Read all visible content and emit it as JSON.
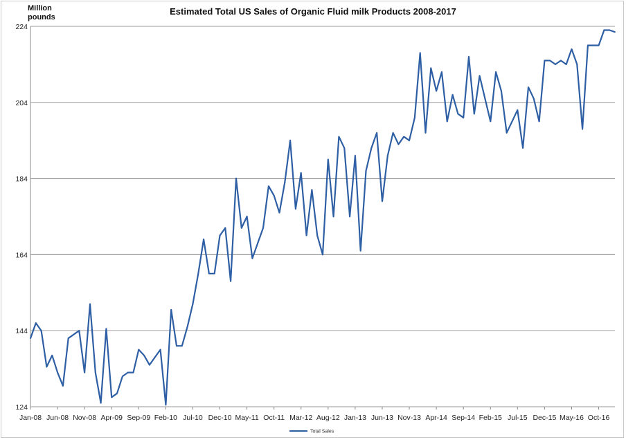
{
  "chart_data": {
    "type": "line",
    "title": "Estimated Total US Sales of Organic Fluid milk Products 2008-2017",
    "ylabel": "Million pounds",
    "xlabel": "",
    "ylim": [
      124,
      224
    ],
    "yticks": [
      124,
      144,
      164,
      184,
      204,
      224
    ],
    "x_tick_labels": [
      "Jan-08",
      "Jun-08",
      "Nov-08",
      "Apr-09",
      "Sep-09",
      "Feb-10",
      "Jul-10",
      "Dec-10",
      "May-11",
      "Oct-11",
      "Mar-12",
      "Aug-12",
      "Jan-13",
      "Jun-13",
      "Nov-13",
      "Apr-14",
      "Sep-14",
      "Feb-15",
      "Jul-15",
      "Dec-15",
      "May-16",
      "Oct-16"
    ],
    "x_tick_interval_months": 5,
    "start_month": "Jan-08",
    "grid": "horizontal",
    "legend_position": "bottom",
    "color": "#2e5fa4",
    "series": [
      {
        "name": "Total Sales",
        "values": [
          142,
          146,
          144,
          134.5,
          137.5,
          133,
          129.5,
          142,
          143,
          144,
          133,
          151,
          133,
          125,
          144.5,
          126.5,
          127.5,
          132,
          133,
          133,
          139,
          137.5,
          135,
          137,
          139,
          124.5,
          149.5,
          140,
          140,
          145,
          151,
          159,
          168,
          159,
          159,
          169,
          171,
          157,
          184,
          171,
          174,
          163,
          167,
          171,
          182,
          179.5,
          175,
          183,
          194,
          176,
          185.5,
          169,
          181,
          169,
          164,
          189,
          174,
          195,
          192,
          174,
          190,
          165,
          186,
          192,
          196,
          178,
          190,
          196,
          193,
          195,
          194,
          200,
          217,
          196,
          213,
          207,
          212,
          199,
          206,
          201,
          200,
          216,
          201,
          211,
          205,
          199,
          212,
          207,
          196,
          199,
          202,
          192,
          208,
          205,
          199,
          215,
          215,
          214,
          215,
          214,
          218,
          214,
          197,
          219,
          219,
          219,
          223,
          223,
          222.5
        ]
      }
    ]
  }
}
